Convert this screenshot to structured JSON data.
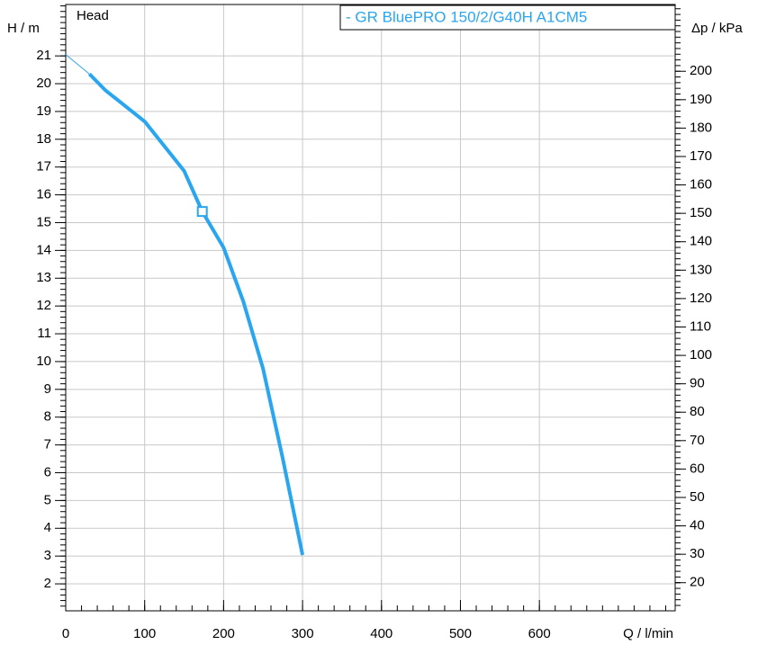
{
  "chart_data": {
    "type": "line",
    "title": "Head",
    "x_label": "Q / l/min",
    "y_label": "H / m",
    "y2_label": "Δp / kPa",
    "xlim": [
      0,
      772
    ],
    "xticks": [
      0,
      100,
      200,
      300,
      400,
      500,
      600
    ],
    "ylim": [
      1.03,
      22.85
    ],
    "yticks": [
      2,
      3,
      4,
      5,
      6,
      7,
      8,
      9,
      10,
      11,
      12,
      13,
      14,
      15,
      16,
      17,
      18,
      19,
      20,
      21
    ],
    "y2lim": [
      10.1,
      223.5
    ],
    "y2ticks": [
      20,
      30,
      40,
      50,
      60,
      70,
      80,
      90,
      100,
      110,
      120,
      130,
      140,
      150,
      160,
      170,
      180,
      190,
      200
    ],
    "grid": true,
    "series": [
      {
        "name": "- GR BluePRO 150/2/G40H A1CM5",
        "color": "#2aa6f0",
        "x": [
          30,
          50,
          100,
          150,
          173,
          200,
          225,
          250,
          275,
          300
        ],
        "values": [
          20.35,
          19.77,
          18.64,
          16.86,
          15.4,
          14.1,
          12.16,
          9.74,
          6.5,
          3.04
        ]
      }
    ],
    "extrapolation": {
      "color": "#2aa6f0",
      "x": [
        0,
        30
      ],
      "values": [
        21.05,
        20.35
      ]
    },
    "duty_point": {
      "x": 173,
      "y": 15.4
    }
  }
}
